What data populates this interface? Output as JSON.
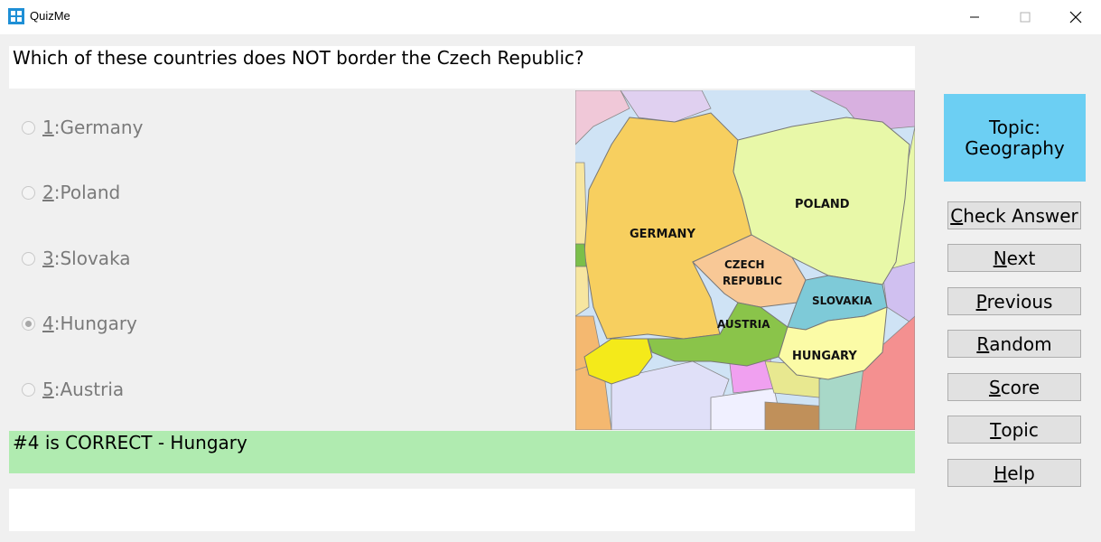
{
  "window": {
    "title": "QuizMe",
    "controls": {
      "minimize": "minimize-icon",
      "maximize": "maximize-icon",
      "close": "close-icon"
    }
  },
  "question": {
    "text": "Which of these countries does NOT border the Czech Republic?"
  },
  "options": [
    {
      "num": "1",
      "label": "Germany",
      "selected": false
    },
    {
      "num": "2",
      "label": "Poland",
      "selected": false
    },
    {
      "num": "3",
      "label": "Slovaka",
      "selected": false
    },
    {
      "num": "4",
      "label": "Hungary",
      "selected": true
    },
    {
      "num": "5",
      "label": "Austria",
      "selected": false
    }
  ],
  "map": {
    "labels": {
      "germany": "GERMANY",
      "poland": "POLAND",
      "czech_line1": "CZECH",
      "czech_line2": "REPUBLIC",
      "slovakia": "SLOVAKIA",
      "austria": "AUSTRIA",
      "hungary": "HUNGARY"
    },
    "colors": {
      "germany": "#f7cf5f",
      "poland": "#e8f8a8",
      "czech": "#f8c896",
      "slovakia": "#7ecad8",
      "austria": "#8ac44a",
      "hungary": "#fbfba6",
      "switzerland": "#f4ea1a",
      "water": "#cfe3f5"
    }
  },
  "result": {
    "text": "#4 is CORRECT - Hungary"
  },
  "topic": {
    "line1": "Topic:",
    "line2": "Geography",
    "color": "#6ccff3"
  },
  "buttons": [
    {
      "id": "check-answer",
      "mnemonic": "C",
      "rest": "heck Answer"
    },
    {
      "id": "next",
      "mnemonic": "N",
      "rest": "ext"
    },
    {
      "id": "previous",
      "mnemonic": "P",
      "rest": "revious"
    },
    {
      "id": "random",
      "mnemonic": "R",
      "rest": "andom"
    },
    {
      "id": "score",
      "mnemonic": "S",
      "rest": "core"
    },
    {
      "id": "topic",
      "mnemonic": "T",
      "rest": "opic"
    },
    {
      "id": "help",
      "mnemonic": "H",
      "rest": "elp"
    }
  ]
}
